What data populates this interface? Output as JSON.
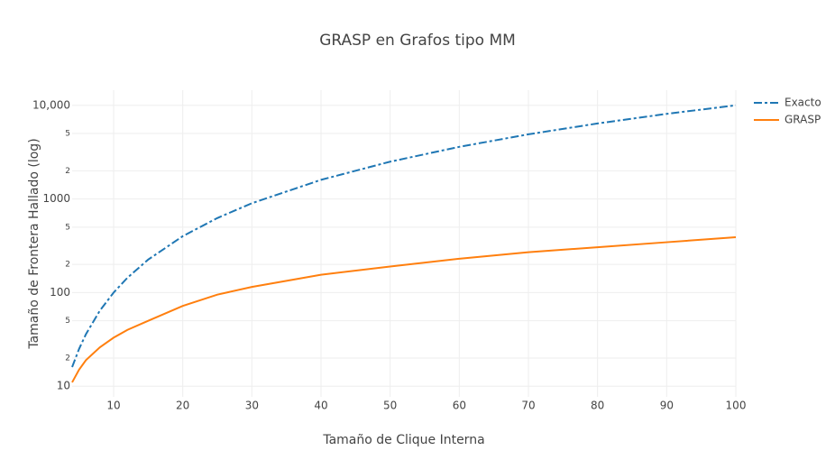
{
  "chart_data": {
    "type": "line",
    "title": "GRASP en Grafos tipo MM",
    "x_label": "Tamaño de Clique Interna",
    "y_label": "Tamaño de Frontera Hallado (log)",
    "x": [
      4,
      5,
      6,
      8,
      10,
      12,
      15,
      20,
      25,
      30,
      40,
      50,
      60,
      70,
      80,
      90,
      100
    ],
    "series": [
      {
        "name": "Exacto",
        "color": "#1f77b4",
        "dash": "dashdot",
        "values": [
          16,
          25,
          36,
          64,
          100,
          144,
          225,
          400,
          625,
          900,
          1600,
          2500,
          3600,
          4900,
          6400,
          8100,
          10000
        ]
      },
      {
        "name": "GRASP",
        "color": "#ff7f0e",
        "dash": "solid",
        "values": [
          11,
          15,
          19,
          26,
          33,
          40,
          50,
          72,
          95,
          115,
          155,
          190,
          230,
          270,
          305,
          345,
          390
        ]
      }
    ],
    "xlim": [
      4,
      100
    ],
    "xticks": [
      10,
      20,
      30,
      40,
      50,
      60,
      70,
      80,
      90,
      100
    ],
    "ylim": [
      7.7,
      14500
    ],
    "log_y": true,
    "yticks": [
      10,
      {
        "value": 20,
        "label": "2"
      },
      {
        "value": 50,
        "label": "5"
      },
      100,
      {
        "value": 200,
        "label": "2"
      },
      {
        "value": 500,
        "label": "5"
      },
      1000,
      {
        "value": 2000,
        "label": "2"
      },
      {
        "value": 5000,
        "label": "5"
      },
      {
        "value": 10000,
        "label": "10,000"
      }
    ],
    "grid": true,
    "legend": "top-right"
  }
}
